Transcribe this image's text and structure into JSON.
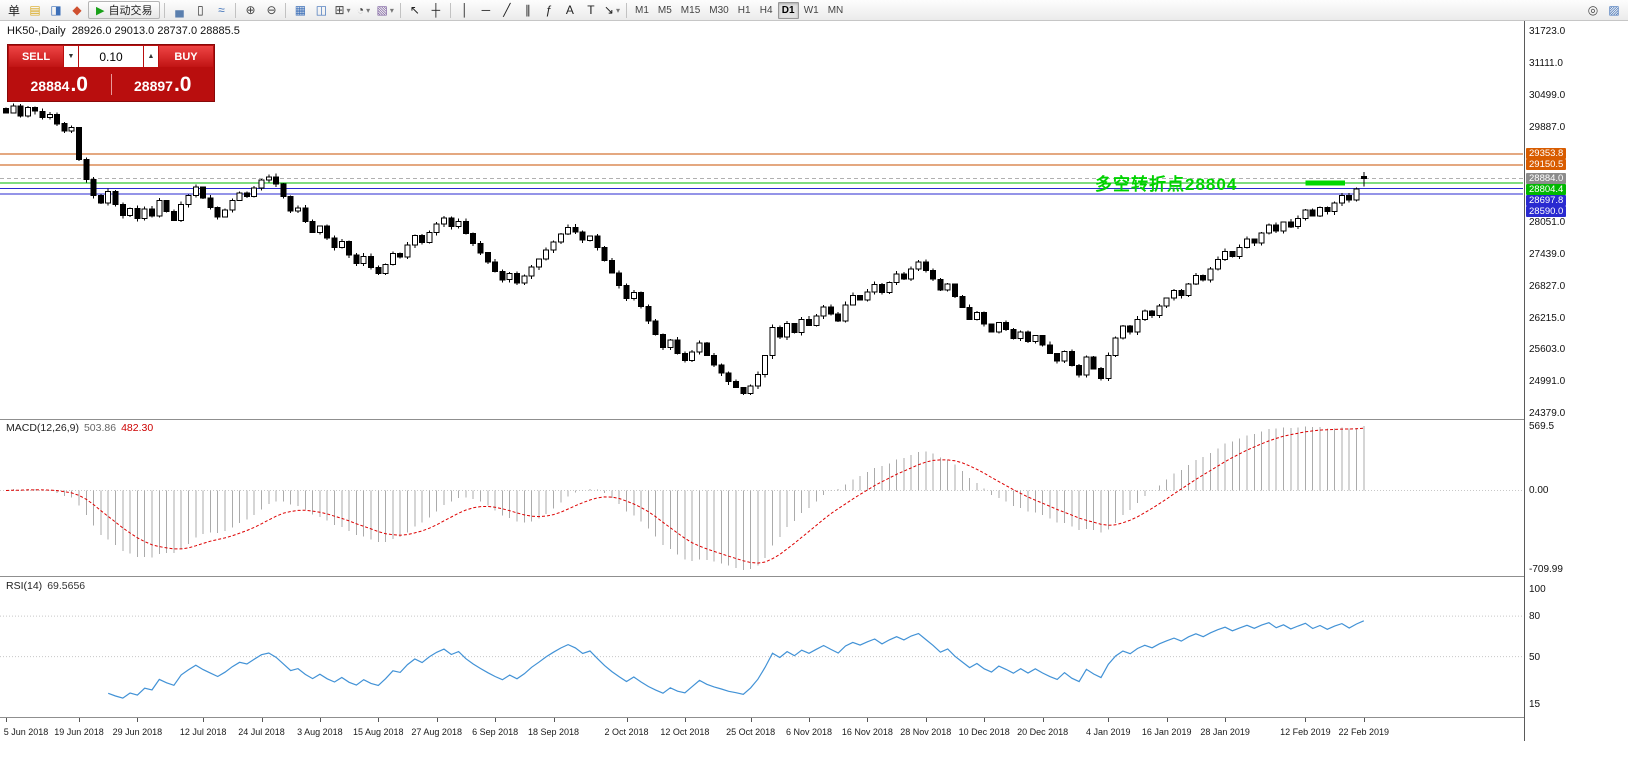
{
  "toolbar": {
    "items": [
      {
        "glyph": "单",
        "name": "new-order-icon",
        "color": "#222"
      },
      {
        "glyph": "▤",
        "name": "charts-list-icon",
        "color": "#d9a91f"
      },
      {
        "glyph": "◨",
        "name": "navigator-icon",
        "color": "#3c6fb8"
      },
      {
        "glyph": "◆",
        "name": "market-watch-icon",
        "color": "#cf5030"
      },
      {
        "type": "button",
        "glyph": "▶",
        "color": "#17a017",
        "label": "自动交易",
        "name": "autotrading-button"
      },
      {
        "type": "sep"
      },
      {
        "glyph": "▄",
        "name": "bar-chart-icon",
        "color": "#5a7fae"
      },
      {
        "glyph": "▯",
        "name": "candlestick-chart-icon",
        "color": "#333"
      },
      {
        "glyph": "≈",
        "name": "line-chart-icon",
        "color": "#3c6fb8"
      },
      {
        "type": "sep"
      },
      {
        "glyph": "⊕",
        "name": "zoom-in-icon",
        "color": "#444"
      },
      {
        "glyph": "⊖",
        "name": "zoom-out-icon",
        "color": "#444"
      },
      {
        "type": "sep"
      },
      {
        "glyph": "▦",
        "name": "tile-windows-icon",
        "color": "#3c6fb8"
      },
      {
        "glyph": "◫",
        "name": "cascade-windows-icon",
        "color": "#3c6fb8"
      },
      {
        "glyph": "⊞",
        "name": "new-chart-icon",
        "color": "#444",
        "caret": true
      },
      {
        "glyph": "◔",
        "name": "periods-icon",
        "color": "#444",
        "caret": true
      },
      {
        "glyph": "▧",
        "name": "template-icon",
        "color": "#7a5c9e",
        "caret": true
      },
      {
        "type": "sep"
      },
      {
        "glyph": "↖",
        "name": "cursor-icon",
        "color": "#222"
      },
      {
        "glyph": "┼",
        "name": "crosshair-icon",
        "color": "#222"
      },
      {
        "type": "sep"
      },
      {
        "glyph": "│",
        "name": "vertical-line-icon",
        "color": "#222"
      },
      {
        "glyph": "─",
        "name": "horizontal-line-icon",
        "color": "#222"
      },
      {
        "glyph": "╱",
        "name": "trendline-icon",
        "color": "#222"
      },
      {
        "glyph": "∥",
        "name": "equidistant-channel-icon",
        "color": "#222"
      },
      {
        "glyph": "ƒ",
        "name": "fibonacci-icon",
        "color": "#222"
      },
      {
        "glyph": "A",
        "name": "text-icon",
        "color": "#222"
      },
      {
        "glyph": "T",
        "name": "text-label-icon",
        "color": "#222"
      },
      {
        "glyph": "↘",
        "name": "arrow-tools-icon",
        "color": "#222",
        "caret": true
      },
      {
        "type": "sep"
      },
      {
        "type": "tf"
      }
    ],
    "timeframes": [
      "M1",
      "M5",
      "M15",
      "M30",
      "H1",
      "H4",
      "D1",
      "W1",
      "MN"
    ],
    "active_timeframe": "D1",
    "right_items": [
      {
        "glyph": "◎",
        "name": "search-icon",
        "color": "#444"
      },
      {
        "glyph": "▨",
        "name": "workspace-icon",
        "color": "#3c6fb8"
      }
    ]
  },
  "chart_header": {
    "symbol_label": "HK50-,Daily",
    "ohlc": "28926.0 29013.0 28737.0 28885.5"
  },
  "one_click": {
    "sell_label": "SELL",
    "buy_label": "BUY",
    "lot": "0.10",
    "down_glyph": "▼",
    "up_glyph": "▲",
    "sell_price_main": "28884",
    "sell_price_pips": ".0",
    "buy_price_main": "28897",
    "buy_price_pips": ".0"
  },
  "annotation": {
    "text": "多空转折点28804",
    "color": "#00d300"
  },
  "indicators": {
    "macd_label": "MACD(12,26,9)",
    "macd_value1": "503.86",
    "macd_value2": "482.30",
    "rsi_label": "RSI(14)",
    "rsi_value": "69.5656"
  },
  "chart_data": {
    "type": "candlestick",
    "symbol": "HK50-",
    "timeframe": "Daily",
    "subcharts": [
      "MACD(12,26,9)",
      "RSI(14)"
    ],
    "last_candle": {
      "o": 28926.0,
      "h": 29013.0,
      "l": 28737.0,
      "c": 28885.5
    },
    "closes": [
      30150,
      30280,
      30090,
      30250,
      30180,
      30060,
      30120,
      29940,
      29800,
      29870,
      29250,
      28870,
      28560,
      28420,
      28640,
      28390,
      28180,
      28310,
      28120,
      28300,
      28170,
      28460,
      28250,
      28080,
      28390,
      28560,
      28720,
      28510,
      28330,
      28150,
      28280,
      28460,
      28610,
      28540,
      28700,
      28860,
      28920,
      28780,
      28540,
      28260,
      28320,
      28060,
      27850,
      27970,
      27740,
      27560,
      27680,
      27420,
      27250,
      27390,
      27180,
      27060,
      27230,
      27450,
      27380,
      27610,
      27790,
      27660,
      27850,
      28010,
      28130,
      27960,
      28060,
      27830,
      27640,
      27460,
      27280,
      27100,
      26940,
      27060,
      26880,
      27010,
      27190,
      27340,
      27510,
      27670,
      27820,
      27950,
      27860,
      27700,
      27780,
      27560,
      27310,
      27070,
      26830,
      26580,
      26700,
      26430,
      26150,
      25890,
      25640,
      25780,
      25520,
      25390,
      25550,
      25720,
      25480,
      25300,
      25150,
      24980,
      24870,
      24750,
      24900,
      25120,
      25480,
      26020,
      25840,
      26100,
      25930,
      26180,
      26060,
      26240,
      26420,
      26280,
      26150,
      26460,
      26640,
      26550,
      26710,
      26850,
      26700,
      26890,
      27050,
      26960,
      27150,
      27280,
      27120,
      26950,
      26740,
      26860,
      26620,
      26410,
      26180,
      26310,
      26090,
      25940,
      26120,
      25980,
      25810,
      25940,
      25750,
      25870,
      25690,
      25520,
      25380,
      25560,
      25290,
      25110,
      25460,
      25230,
      25040,
      25480,
      25820,
      26050,
      25940,
      26180,
      26340,
      26250,
      26440,
      26590,
      26730,
      26640,
      26860,
      27020,
      26940,
      27150,
      27330,
      27480,
      27390,
      27560,
      27720,
      27650,
      27840,
      27990,
      27880,
      28050,
      27960,
      28120,
      28280,
      28170,
      28330,
      28250,
      28420,
      28560,
      28470,
      28690,
      28885.5
    ],
    "x_dates": [
      {
        "label": "5 Jun 2018",
        "i": 0
      },
      {
        "label": "19 Jun 2018",
        "i": 10
      },
      {
        "label": "29 Jun 2018",
        "i": 18
      },
      {
        "label": "12 Jul 2018",
        "i": 27
      },
      {
        "label": "24 Jul 2018",
        "i": 35
      },
      {
        "label": "3 Aug 2018",
        "i": 43
      },
      {
        "label": "15 Aug 2018",
        "i": 51
      },
      {
        "label": "27 Aug 2018",
        "i": 59
      },
      {
        "label": "6 Sep 2018",
        "i": 67
      },
      {
        "label": "18 Sep 2018",
        "i": 75
      },
      {
        "label": "2 Oct 2018",
        "i": 85
      },
      {
        "label": "12 Oct 2018",
        "i": 93
      },
      {
        "label": "25 Oct 2018",
        "i": 102
      },
      {
        "label": "6 Nov 2018",
        "i": 110
      },
      {
        "label": "16 Nov 2018",
        "i": 118
      },
      {
        "label": "28 Nov 2018",
        "i": 126
      },
      {
        "label": "10 Dec 2018",
        "i": 134
      },
      {
        "label": "20 Dec 2018",
        "i": 142
      },
      {
        "label": "4 Jan 2019",
        "i": 151
      },
      {
        "label": "16 Jan 2019",
        "i": 159
      },
      {
        "label": "28 Jan 2019",
        "i": 167
      },
      {
        "label": "12 Feb 2019",
        "i": 178
      },
      {
        "label": "22 Feb 2019",
        "i": 186
      }
    ],
    "main_axis": {
      "ylim": [
        24379.0,
        31723.0
      ],
      "ticks": [
        31723.0,
        31111.0,
        30499.0,
        29887.0,
        28051.0,
        27439.0,
        26827.0,
        26215.0,
        25603.0,
        24991.0,
        24379.0
      ]
    },
    "hlines": [
      {
        "price": 29353.8,
        "label": "29353.8",
        "color": "#c85200",
        "badge": "#d85c00"
      },
      {
        "price": 29150.5,
        "label": "29150.5",
        "color": "#c85200",
        "badge": "#d85c00"
      },
      {
        "price": 28884.0,
        "label": "28884.0",
        "color": "#b0b0b0",
        "badge": "#8c8c8c",
        "style": "dashed"
      },
      {
        "price": 28804.4,
        "label": "28804.4",
        "color": "#00b800",
        "badge": "#00b800"
      },
      {
        "price": 28697.8,
        "label": "28697.8",
        "color": "#2a2ad0",
        "badge": "#2a2ad0"
      },
      {
        "price": 28590.0,
        "label": "28590.0",
        "color": "#2a2ad0",
        "badge": "#2a2ad0"
      }
    ],
    "green_segment": {
      "price": 28804.4,
      "from_index": 178,
      "to_index": 183,
      "color": "#00d800"
    },
    "macd_params": [
      12,
      26,
      9
    ],
    "macd_axis": {
      "ticks": [
        "569.5",
        "0.00",
        "-709.99"
      ]
    },
    "rsi_period": 14,
    "rsi_axis": {
      "ticks": [
        100,
        80,
        50,
        15
      ],
      "levels": [
        80,
        50
      ]
    }
  }
}
